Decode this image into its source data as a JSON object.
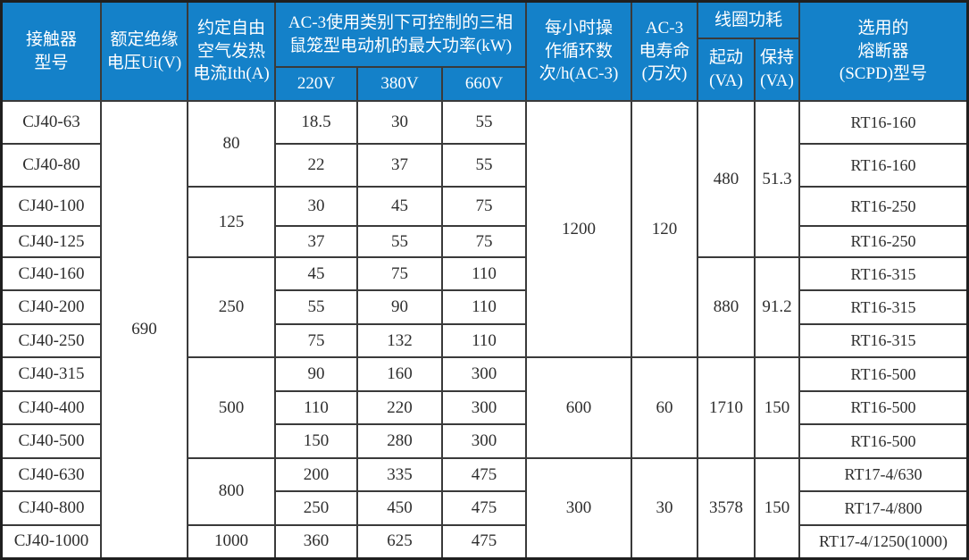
{
  "table": {
    "title_semantic": "CJ40 contactor specification table",
    "colors": {
      "header_bg": "#1481c9",
      "header_text": "#ffffff",
      "grid_line": "#3a3a3a",
      "cell_bg": "#ffffff",
      "cell_text": "#2e2e2e"
    },
    "header": {
      "model": "接触器\n型号",
      "voltage": "额定绝缘\n电压Ui(V)",
      "ith": "约定自由\n空气发热\n电流Ith(A)",
      "ac3_group": "AC-3使用类别下可控制的三相\n鼠笼型电动机的最大功率(kW)",
      "v220": "220V",
      "v380": "380V",
      "v660": "660V",
      "cycles": "每小时操\n作循环数\n次/h(AC-3)",
      "life": "AC-3\n电寿命\n(万次)",
      "coil_group": "线圈功耗",
      "coil_start": "起动\n(VA)",
      "coil_hold": "保持\n(VA)",
      "fuse": "选用的\n熔断器\n(SCPD)型号"
    },
    "voltage_value": "690",
    "ith_values": [
      "80",
      "125",
      "250",
      "500",
      "800",
      "1000"
    ],
    "cycles_values": [
      "1200",
      "600",
      "300"
    ],
    "life_values": [
      "120",
      "60",
      "30"
    ],
    "coil_start_values": [
      "480",
      "880",
      "1710",
      "3578"
    ],
    "coil_hold_values": [
      "51.3",
      "91.2",
      "150",
      "150"
    ],
    "rows": [
      {
        "model": "CJ40-63",
        "p220": "18.5",
        "p380": "30",
        "p660": "55",
        "fuse": "RT16-160"
      },
      {
        "model": "CJ40-80",
        "p220": "22",
        "p380": "37",
        "p660": "55",
        "fuse": "RT16-160"
      },
      {
        "model": "CJ40-100",
        "p220": "30",
        "p380": "45",
        "p660": "75",
        "fuse": "RT16-250"
      },
      {
        "model": "CJ40-125",
        "p220": "37",
        "p380": "55",
        "p660": "75",
        "fuse": "RT16-250"
      },
      {
        "model": "CJ40-160",
        "p220": "45",
        "p380": "75",
        "p660": "110",
        "fuse": "RT16-315"
      },
      {
        "model": "CJ40-200",
        "p220": "55",
        "p380": "90",
        "p660": "110",
        "fuse": "RT16-315"
      },
      {
        "model": "CJ40-250",
        "p220": "75",
        "p380": "132",
        "p660": "110",
        "fuse": "RT16-315"
      },
      {
        "model": "CJ40-315",
        "p220": "90",
        "p380": "160",
        "p660": "300",
        "fuse": "RT16-500"
      },
      {
        "model": "CJ40-400",
        "p220": "110",
        "p380": "220",
        "p660": "300",
        "fuse": "RT16-500"
      },
      {
        "model": "CJ40-500",
        "p220": "150",
        "p380": "280",
        "p660": "300",
        "fuse": "RT16-500"
      },
      {
        "model": "CJ40-630",
        "p220": "200",
        "p380": "335",
        "p660": "475",
        "fuse": "RT17-4/630"
      },
      {
        "model": "CJ40-800",
        "p220": "250",
        "p380": "450",
        "p660": "475",
        "fuse": "RT17-4/800"
      },
      {
        "model": "CJ40-1000",
        "p220": "360",
        "p380": "625",
        "p660": "475",
        "fuse": "RT17-4/1250(1000)"
      }
    ]
  }
}
